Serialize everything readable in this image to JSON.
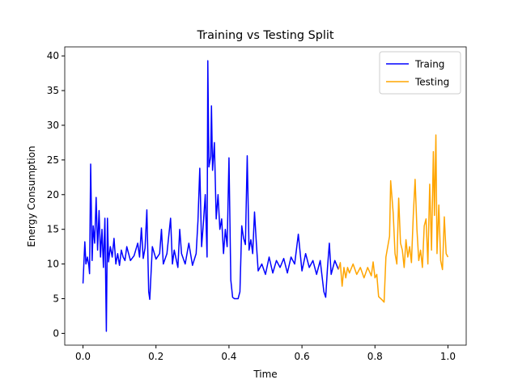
{
  "chart_data": {
    "type": "line",
    "title": "Training vs Testing Split",
    "xlabel": "Time",
    "ylabel": "Energy Consumption",
    "xlim": [
      -0.05,
      1.05
    ],
    "ylim": [
      -1.7,
      41.3
    ],
    "xticks": [
      {
        "value": 0,
        "label": "0.0"
      },
      0.2,
      0.4,
      0.6,
      0.8,
      {
        "value": 1,
        "label": "1.0"
      }
    ],
    "yticks": [
      0,
      5,
      10,
      15,
      20,
      25,
      30,
      35,
      40
    ],
    "grid": false,
    "legend": "upper right",
    "series": [
      {
        "name": "Traing",
        "color": "#0000ff",
        "x": [
          0.0,
          0.005,
          0.008,
          0.012,
          0.016,
          0.018,
          0.021,
          0.025,
          0.028,
          0.032,
          0.036,
          0.04,
          0.044,
          0.048,
          0.052,
          0.056,
          0.06,
          0.064,
          0.067,
          0.07,
          0.075,
          0.08,
          0.085,
          0.09,
          0.095,
          0.1,
          0.105,
          0.11,
          0.115,
          0.12,
          0.13,
          0.14,
          0.15,
          0.155,
          0.16,
          0.165,
          0.17,
          0.175,
          0.18,
          0.183,
          0.19,
          0.2,
          0.21,
          0.215,
          0.22,
          0.23,
          0.24,
          0.245,
          0.25,
          0.26,
          0.265,
          0.27,
          0.28,
          0.29,
          0.3,
          0.31,
          0.315,
          0.32,
          0.325,
          0.33,
          0.335,
          0.34,
          0.342,
          0.345,
          0.35,
          0.352,
          0.355,
          0.36,
          0.365,
          0.37,
          0.375,
          0.38,
          0.385,
          0.39,
          0.395,
          0.4,
          0.405,
          0.41,
          0.415,
          0.425,
          0.43,
          0.435,
          0.44,
          0.445,
          0.45,
          0.455,
          0.46,
          0.465,
          0.47,
          0.475,
          0.48,
          0.49,
          0.5,
          0.51,
          0.52,
          0.53,
          0.54,
          0.55,
          0.56,
          0.57,
          0.58,
          0.59,
          0.6,
          0.61,
          0.62,
          0.63,
          0.64,
          0.65,
          0.66,
          0.665,
          0.67,
          0.675,
          0.68,
          0.69,
          0.7
        ],
        "values": [
          7.2,
          13.2,
          10,
          11,
          9.8,
          8.6,
          24.4,
          10.5,
          15.5,
          13,
          19.6,
          12,
          17.7,
          11,
          15,
          9.5,
          16.6,
          0.3,
          16.6,
          10.3,
          12.5,
          11,
          13.7,
          10,
          11.5,
          9.8,
          12,
          11,
          10.5,
          12.5,
          10.5,
          11.2,
          13,
          11,
          15.2,
          10.8,
          12.3,
          17.8,
          6,
          4.9,
          12.5,
          10.7,
          11.5,
          15,
          10,
          11.5,
          16.6,
          10,
          12,
          9.5,
          15,
          11.5,
          10,
          13,
          9.8,
          11.5,
          16.2,
          23.8,
          12.5,
          16,
          20,
          11,
          39.3,
          24,
          25.5,
          32.8,
          23.5,
          27.5,
          16.5,
          20,
          15,
          16.5,
          11.5,
          15,
          12.5,
          25.3,
          7.7,
          5.2,
          5,
          5,
          6,
          15.5,
          13.7,
          12.8,
          25.6,
          12,
          13.5,
          11.5,
          17.5,
          13,
          9,
          10,
          8.5,
          11,
          8.7,
          10.5,
          9.5,
          10.8,
          8.7,
          11,
          10,
          14.3,
          9,
          11.5,
          9.5,
          10.5,
          8.5,
          10.5,
          6,
          5.2,
          9.5,
          13,
          8.5,
          10.5,
          9.2
        ]
      },
      {
        "name": "Testing",
        "color": "#ffa500",
        "x": [
          0.7,
          0.705,
          0.71,
          0.715,
          0.72,
          0.725,
          0.73,
          0.74,
          0.75,
          0.76,
          0.77,
          0.78,
          0.79,
          0.795,
          0.8,
          0.805,
          0.81,
          0.82,
          0.825,
          0.83,
          0.835,
          0.84,
          0.843,
          0.85,
          0.855,
          0.86,
          0.865,
          0.87,
          0.875,
          0.88,
          0.885,
          0.89,
          0.895,
          0.9,
          0.905,
          0.91,
          0.915,
          0.92,
          0.925,
          0.93,
          0.935,
          0.94,
          0.945,
          0.95,
          0.955,
          0.96,
          0.963,
          0.967,
          0.97,
          0.975,
          0.98,
          0.985,
          0.99,
          0.995,
          1.0
        ],
        "values": [
          9.2,
          10.2,
          6.8,
          9.5,
          8,
          9.5,
          8.7,
          10,
          8.5,
          9.5,
          8,
          9.5,
          8.3,
          10.3,
          8,
          8.5,
          5.3,
          4.8,
          4.5,
          11,
          12.5,
          14,
          22,
          17.3,
          11.5,
          10,
          19.5,
          13,
          12,
          9.5,
          13.5,
          11,
          12.5,
          10.2,
          17,
          22.2,
          15,
          10.5,
          12,
          9.5,
          15.5,
          16.5,
          10,
          21.5,
          12,
          26.2,
          17,
          28.6,
          11.5,
          18.5,
          10.5,
          9.2,
          16.8,
          11.5,
          11
        ]
      }
    ]
  }
}
